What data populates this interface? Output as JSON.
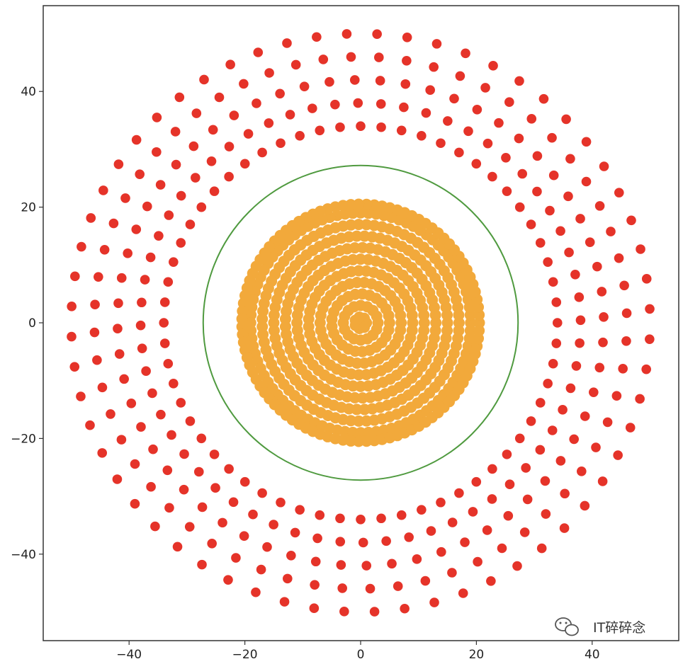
{
  "chart_data": {
    "type": "scatter",
    "title": "",
    "xlabel": "",
    "ylabel": "",
    "xlim": [
      -55,
      55
    ],
    "ylim": [
      -55,
      55
    ],
    "grid": false,
    "x_ticks": [
      -40,
      -20,
      0,
      20,
      40
    ],
    "y_ticks": [
      40,
      20,
      0,
      -20,
      -40
    ],
    "x_tick_labels": [
      "−40",
      "−20",
      "0",
      "20",
      "40"
    ],
    "y_tick_labels": [
      "40",
      "20",
      "0",
      "−20",
      "−40"
    ],
    "series": [
      {
        "color": "#f2a93b",
        "marker": "circle",
        "pattern": "concentric rings",
        "radii": [
          1,
          3,
          5,
          7,
          9,
          11,
          13,
          15,
          17,
          19,
          20.5
        ],
        "points_per_ring": [
          7,
          16,
          25,
          34,
          43,
          52,
          61,
          70,
          79,
          88,
          95
        ]
      },
      {
        "color": "#e53329",
        "marker": "circle",
        "pattern": "radial spokes",
        "radii": [
          34,
          38,
          42,
          46,
          50
        ],
        "spokes": 60
      }
    ],
    "circle": {
      "center": [
        0,
        0
      ],
      "radius": 27.2,
      "color": "#4f9a3f"
    }
  },
  "watermark": {
    "text": "IT碎碎念",
    "icon": "wechat-icon"
  }
}
